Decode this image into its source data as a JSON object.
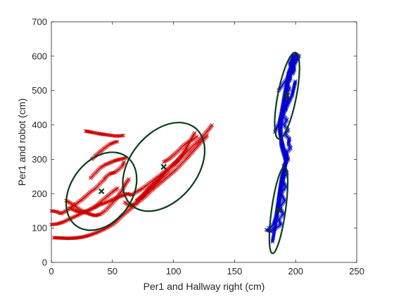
{
  "chart_data": {
    "type": "scatter",
    "title": "",
    "xlabel": "Per1 and Hallway right (cm)",
    "ylabel": "Per1 and robot (cm)",
    "xlim": [
      0,
      250
    ],
    "ylim": [
      0,
      700
    ],
    "xticks": [
      0,
      50,
      100,
      150,
      200,
      250
    ],
    "yticks": [
      0,
      100,
      200,
      300,
      400,
      500,
      600,
      700
    ],
    "grid": false,
    "legend": "none",
    "marker": "x",
    "series": [
      {
        "color": "#cc0000",
        "segments": [
          [
            [
              0,
              150
            ],
            [
              4,
              148
            ],
            [
              8,
              142
            ],
            [
              12,
              150
            ],
            [
              16,
              160
            ],
            [
              20,
              170
            ],
            [
              24,
              180
            ],
            [
              28,
              192
            ],
            [
              32,
              205
            ],
            [
              36,
              215
            ],
            [
              38,
              222
            ],
            [
              40,
              230
            ],
            [
              43,
              240
            ],
            [
              45,
              250
            ],
            [
              48,
              258
            ],
            [
              52,
              262
            ],
            [
              55,
              270
            ],
            [
              58,
              280
            ],
            [
              60,
              295
            ]
          ],
          [
            [
              0,
              110
            ],
            [
              5,
              112
            ],
            [
              10,
              118
            ],
            [
              16,
              128
            ],
            [
              22,
              138
            ],
            [
              28,
              148
            ],
            [
              34,
              158
            ],
            [
              40,
              168
            ],
            [
              46,
              176
            ],
            [
              52,
              186
            ],
            [
              58,
              194
            ],
            [
              62,
              200
            ],
            [
              66,
              196
            ],
            [
              70,
              206
            ],
            [
              74,
              214
            ],
            [
              78,
              224
            ],
            [
              82,
              235
            ],
            [
              86,
              246
            ],
            [
              90,
              256
            ],
            [
              94,
              268
            ],
            [
              98,
              280
            ],
            [
              102,
              292
            ],
            [
              106,
              305
            ],
            [
              110,
              318
            ],
            [
              114,
              332
            ],
            [
              118,
              346
            ],
            [
              122,
              360
            ],
            [
              126,
              375
            ],
            [
              130,
              392
            ],
            [
              132,
              402
            ]
          ],
          [
            [
              2,
              72
            ],
            [
              8,
              71
            ],
            [
              14,
              70
            ],
            [
              20,
              71
            ],
            [
              26,
              74
            ],
            [
              32,
              80
            ],
            [
              38,
              88
            ],
            [
              44,
              98
            ],
            [
              50,
              110
            ],
            [
              54,
              122
            ],
            [
              58,
              136
            ],
            [
              62,
              148
            ],
            [
              66,
              160
            ],
            [
              70,
              172
            ],
            [
              74,
              184
            ],
            [
              78,
              196
            ],
            [
              82,
              210
            ],
            [
              86,
              222
            ],
            [
              90,
              234
            ],
            [
              94,
              246
            ],
            [
              98,
              258
            ],
            [
              102,
              270
            ],
            [
              106,
              285
            ],
            [
              110,
              300
            ],
            [
              114,
              316
            ],
            [
              118,
              332
            ],
            [
              122,
              348
            ],
            [
              126,
              362
            ],
            [
              128,
              372
            ]
          ],
          [
            [
              12,
              180
            ],
            [
              16,
              172
            ],
            [
              20,
              162
            ],
            [
              24,
              152
            ],
            [
              28,
              145
            ],
            [
              32,
              140
            ],
            [
              36,
              136
            ],
            [
              40,
              140
            ],
            [
              44,
              150
            ],
            [
              48,
              165
            ],
            [
              52,
              180
            ],
            [
              55,
              195
            ],
            [
              58,
              210
            ],
            [
              61,
              230
            ],
            [
              64,
              245
            ]
          ],
          [
            [
              70,
              180
            ],
            [
              74,
              190
            ],
            [
              78,
              205
            ],
            [
              82,
              220
            ],
            [
              86,
              236
            ],
            [
              90,
              250
            ],
            [
              94,
              262
            ],
            [
              98,
              276
            ],
            [
              102,
              290
            ],
            [
              106,
              308
            ],
            [
              110,
              330
            ],
            [
              113,
              350
            ],
            [
              116,
              368
            ],
            [
              118,
              380
            ]
          ],
          [
            [
              60,
              175
            ],
            [
              64,
              165
            ],
            [
              68,
              170
            ],
            [
              72,
              185
            ],
            [
              76,
              200
            ],
            [
              80,
              215
            ],
            [
              84,
              228
            ],
            [
              88,
              240
            ],
            [
              92,
              255
            ],
            [
              96,
              270
            ]
          ],
          [
            [
              15,
              158
            ],
            [
              20,
              150
            ],
            [
              25,
              145
            ],
            [
              30,
              150
            ],
            [
              35,
              160
            ],
            [
              40,
              175
            ],
            [
              45,
              190
            ],
            [
              50,
              205
            ],
            [
              55,
              218
            ]
          ],
          [
            [
              28,
              382
            ],
            [
              34,
              378
            ],
            [
              38,
              375
            ],
            [
              44,
              372
            ],
            [
              48,
              370
            ],
            [
              52,
              368
            ],
            [
              56,
              368
            ],
            [
              60,
              370
            ]
          ],
          [
            [
              33,
              300
            ],
            [
              36,
              310
            ],
            [
              40,
              322
            ],
            [
              44,
              334
            ],
            [
              48,
              344
            ],
            [
              52,
              350
            ],
            [
              55,
              352
            ]
          ],
          [
            [
              32,
              245
            ],
            [
              36,
              260
            ],
            [
              40,
              275
            ],
            [
              44,
              284
            ],
            [
              48,
              290
            ],
            [
              52,
              296
            ],
            [
              56,
              300
            ],
            [
              60,
              303
            ],
            [
              62,
              305
            ]
          ],
          [
            [
              92,
              292
            ],
            [
              96,
              300
            ],
            [
              100,
              312
            ],
            [
              104,
              325
            ],
            [
              108,
              340
            ],
            [
              112,
              350
            ],
            [
              116,
              358
            ],
            [
              120,
              368
            ]
          ]
        ]
      },
      {
        "color": "#0000cc",
        "segments": [
          [
            [
              178,
              100
            ],
            [
              180,
              102
            ],
            [
              182,
              112
            ],
            [
              184,
              135
            ],
            [
              185,
              160
            ],
            [
              186,
              185
            ],
            [
              187,
              210
            ],
            [
              188,
              235
            ],
            [
              189,
              255
            ],
            [
              190,
              268
            ],
            [
              191,
              280
            ],
            [
              192,
              292
            ],
            [
              191,
              305
            ],
            [
              190,
              318
            ],
            [
              189,
              330
            ],
            [
              188,
              345
            ],
            [
              188,
              360
            ],
            [
              187,
              378
            ],
            [
              187,
              395
            ],
            [
              187,
              412
            ],
            [
              188,
              430
            ],
            [
              189,
              450
            ],
            [
              190,
              470
            ],
            [
              191,
              490
            ],
            [
              192,
              510
            ],
            [
              193,
              530
            ],
            [
              194,
              550
            ],
            [
              196,
              570
            ],
            [
              197,
              590
            ],
            [
              198,
              605
            ]
          ],
          [
            [
              181,
              60
            ],
            [
              182,
              80
            ],
            [
              183,
              100
            ],
            [
              184,
              120
            ],
            [
              185,
              140
            ],
            [
              186,
              160
            ],
            [
              187,
              182
            ],
            [
              188,
              205
            ],
            [
              189,
              228
            ],
            [
              190,
              250
            ],
            [
              191,
              270
            ],
            [
              192,
              290
            ],
            [
              193,
              305
            ],
            [
              192,
              320
            ],
            [
              190,
              335
            ],
            [
              189,
              350
            ],
            [
              188,
              366
            ],
            [
              188,
              382
            ],
            [
              188,
              400
            ],
            [
              189,
              420
            ],
            [
              190,
              442
            ],
            [
              191,
              465
            ],
            [
              192,
              488
            ],
            [
              193,
              508
            ],
            [
              194,
              528
            ],
            [
              196,
              548
            ],
            [
              197,
              568
            ],
            [
              198,
              588
            ],
            [
              199,
              604
            ]
          ],
          [
            [
              176,
              95
            ],
            [
              180,
              90
            ],
            [
              184,
              100
            ],
            [
              188,
              110
            ],
            [
              186,
              125
            ],
            [
              190,
              140
            ],
            [
              187,
              160
            ],
            [
              191,
              180
            ],
            [
              188,
              200
            ],
            [
              192,
              220
            ],
            [
              189,
              240
            ],
            [
              193,
              260
            ],
            [
              190,
              280
            ],
            [
              194,
              300
            ],
            [
              192,
              318
            ],
            [
              196,
              332
            ],
            [
              194,
              345
            ],
            [
              195,
              360
            ],
            [
              191,
              372
            ],
            [
              194,
              385
            ],
            [
              190,
              400
            ],
            [
              193,
              415
            ],
            [
              189,
              430
            ],
            [
              192,
              445
            ],
            [
              191,
              460
            ],
            [
              194,
              475
            ],
            [
              192,
              490
            ],
            [
              195,
              505
            ],
            [
              193,
              520
            ],
            [
              196,
              535
            ],
            [
              194,
              550
            ],
            [
              197,
              565
            ],
            [
              195,
              580
            ],
            [
              198,
              595
            ],
            [
              200,
              605
            ],
            [
              203,
              600
            ],
            [
              200,
              590
            ],
            [
              198,
              575
            ],
            [
              199,
              560
            ],
            [
              197,
              545
            ]
          ],
          [
            [
              186,
              500
            ],
            [
              190,
              520
            ],
            [
              194,
              540
            ],
            [
              196,
              560
            ],
            [
              199,
              575
            ],
            [
              201,
              590
            ],
            [
              202,
              600
            ]
          ],
          [
            [
              183,
              380
            ],
            [
              185,
              395
            ],
            [
              187,
              410
            ],
            [
              189,
              425
            ],
            [
              191,
              440
            ],
            [
              193,
              455
            ],
            [
              195,
              470
            ],
            [
              197,
              485
            ],
            [
              198,
              500
            ],
            [
              199,
              515
            ],
            [
              200,
              530
            ]
          ]
        ]
      }
    ],
    "ellipses": [
      {
        "color": "#0a3d1a",
        "cx": 41,
        "cy": 207,
        "rx": 35,
        "ry": 89,
        "angle": 54
      },
      {
        "color": "#0a3d1a",
        "cx": 92,
        "cy": 278,
        "rx": 41,
        "ry": 98,
        "angle": 51
      },
      {
        "color": "#0a3d1a",
        "cx": 186,
        "cy": 152,
        "rx": 5.7,
        "ry": 127,
        "angle": 82
      },
      {
        "color": "#0a3d1a",
        "cx": 193,
        "cy": 485,
        "rx": 7.6,
        "ry": 128,
        "angle": 79
      }
    ],
    "centers": [
      {
        "x": 41,
        "y": 207
      },
      {
        "x": 92,
        "y": 278
      },
      {
        "x": 186,
        "y": 152
      },
      {
        "x": 193,
        "y": 485
      }
    ]
  }
}
